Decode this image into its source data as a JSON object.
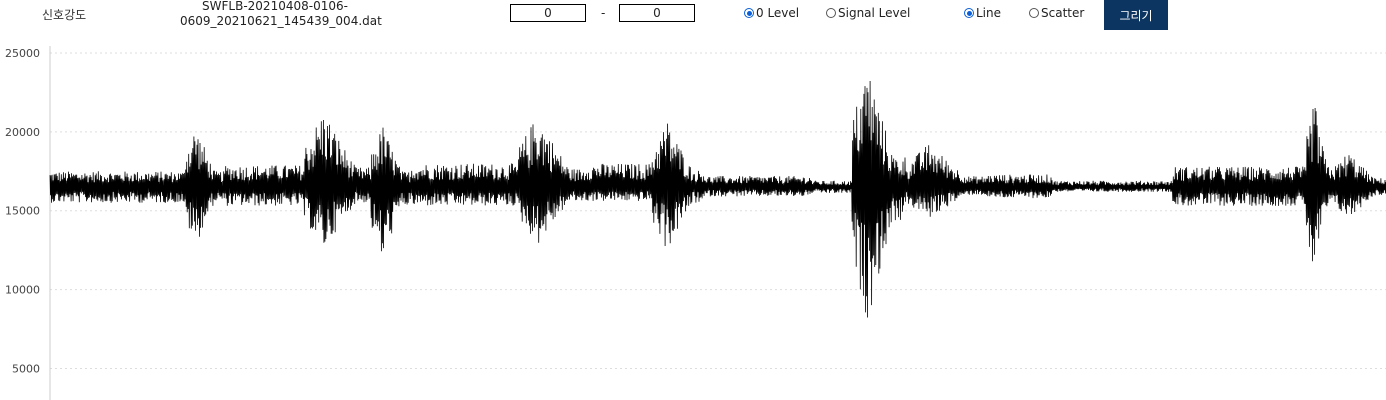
{
  "toolbar": {
    "label": "신호강도",
    "filename_line1": "SWFLB-20210408-0106-",
    "filename_line2": "0609_20210621_145439_004.dat",
    "range_start": "0",
    "range_separator": "-",
    "range_end": "0",
    "level_options": [
      {
        "label": "0 Level",
        "checked": true
      },
      {
        "label": "Signal Level",
        "checked": false
      }
    ],
    "plot_options": [
      {
        "label": "Line",
        "checked": true
      },
      {
        "label": "Scatter",
        "checked": false
      }
    ],
    "draw_button": "그리기"
  },
  "chart_data": {
    "type": "line",
    "ylim": [
      3000,
      25000
    ],
    "baseline": 16500,
    "yticks": [
      25000,
      20000,
      15000,
      10000,
      5000
    ],
    "ytick_labels": [
      "25000",
      "20000",
      "15000",
      "10000",
      "5000"
    ],
    "grid": true,
    "line_color": "#000000",
    "grid_color": "#dddddd",
    "series": [
      {
        "envelope_segments": [
          {
            "x_range": [
              0.0,
              0.1
            ],
            "max": 17500,
            "min": 15500
          },
          {
            "x_range": [
              0.1,
              0.13
            ],
            "max": 20500,
            "min": 12700
          },
          {
            "x_range": [
              0.13,
              0.19
            ],
            "max": 17900,
            "min": 15300
          },
          {
            "x_range": [
              0.19,
              0.24
            ],
            "max": 21500,
            "min": 12500
          },
          {
            "x_range": [
              0.24,
              0.27
            ],
            "max": 20500,
            "min": 11700
          },
          {
            "x_range": [
              0.27,
              0.35
            ],
            "max": 18000,
            "min": 15300
          },
          {
            "x_range": [
              0.35,
              0.4
            ],
            "max": 21200,
            "min": 12800
          },
          {
            "x_range": [
              0.4,
              0.45
            ],
            "max": 18000,
            "min": 15600
          },
          {
            "x_range": [
              0.45,
              0.49
            ],
            "max": 20800,
            "min": 12400
          },
          {
            "x_range": [
              0.49,
              0.57
            ],
            "max": 17200,
            "min": 15900
          },
          {
            "x_range": [
              0.57,
              0.6
            ],
            "max": 16900,
            "min": 16100
          },
          {
            "x_range": [
              0.6,
              0.64
            ],
            "max": 24500,
            "min": 7900
          },
          {
            "x_range": [
              0.64,
              0.7
            ],
            "max": 19300,
            "min": 14500
          },
          {
            "x_range": [
              0.7,
              0.75
            ],
            "max": 17300,
            "min": 15800
          },
          {
            "x_range": [
              0.75,
              0.84
            ],
            "max": 16900,
            "min": 16200
          },
          {
            "x_range": [
              0.84,
              0.94
            ],
            "max": 17800,
            "min": 15300
          },
          {
            "x_range": [
              0.94,
              0.96
            ],
            "max": 22200,
            "min": 10800
          },
          {
            "x_range": [
              0.96,
              1.0
            ],
            "max": 18800,
            "min": 14400
          }
        ]
      }
    ]
  }
}
